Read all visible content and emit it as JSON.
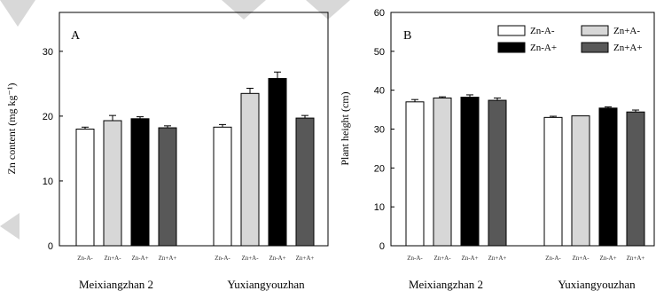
{
  "chart_data": [
    {
      "type": "bar",
      "panel_label": "A",
      "ylabel": "Zn content (mg kg⁻¹)",
      "ylim": [
        0,
        36
      ],
      "yticks": [
        0,
        10,
        20,
        30
      ],
      "tick_labels_y": [
        "0",
        "10",
        "20",
        "30"
      ],
      "groups": [
        "Meixiangzhan 2",
        "Yuxiangyouzhan"
      ],
      "treatments": [
        "Zn-A-",
        "Zn+A-",
        "Zn-A+",
        "Zn+A+"
      ],
      "series": [
        {
          "name": "Zn-A-",
          "values": [
            18.0,
            18.3
          ],
          "errors": [
            0.3,
            0.4
          ]
        },
        {
          "name": "Zn+A-",
          "values": [
            19.3,
            23.5
          ],
          "errors": [
            0.8,
            0.8
          ]
        },
        {
          "name": "Zn-A+",
          "values": [
            19.6,
            25.8
          ],
          "errors": [
            0.3,
            1.0
          ]
        },
        {
          "name": "Zn+A+",
          "values": [
            18.2,
            19.7
          ],
          "errors": [
            0.3,
            0.4
          ]
        }
      ]
    },
    {
      "type": "bar",
      "panel_label": "B",
      "ylabel": "Plant height (cm)",
      "ylim": [
        0,
        60
      ],
      "yticks": [
        0,
        10,
        20,
        30,
        40,
        50,
        60
      ],
      "tick_labels_y": [
        "0",
        "10",
        "20",
        "30",
        "40",
        "50",
        "60"
      ],
      "groups": [
        "Meixiangzhan 2",
        "Yuxiangyouzhan"
      ],
      "treatments": [
        "Zn-A-",
        "Zn+A-",
        "Zn-A+",
        "Zn+A+"
      ],
      "legend": [
        "Zn-A-",
        "Zn+A-",
        "Zn-A+",
        "Zn+A+"
      ],
      "legend_position": "top-right",
      "series": [
        {
          "name": "Zn-A-",
          "values": [
            37.0,
            33.0
          ],
          "errors": [
            0.6,
            0.3
          ]
        },
        {
          "name": "Zn+A-",
          "values": [
            38.0,
            33.4
          ],
          "errors": [
            0.3,
            0.0
          ]
        },
        {
          "name": "Zn-A+",
          "values": [
            38.2,
            35.4
          ],
          "errors": [
            0.6,
            0.3
          ]
        },
        {
          "name": "Zn+A+",
          "values": [
            37.4,
            34.4
          ],
          "errors": [
            0.6,
            0.5
          ]
        }
      ]
    }
  ],
  "colors": {
    "Zn-A-": "#ffffff",
    "Zn+A-": "#d7d7d7",
    "Zn-A+": "#000000",
    "Zn+A+": "#585858"
  }
}
